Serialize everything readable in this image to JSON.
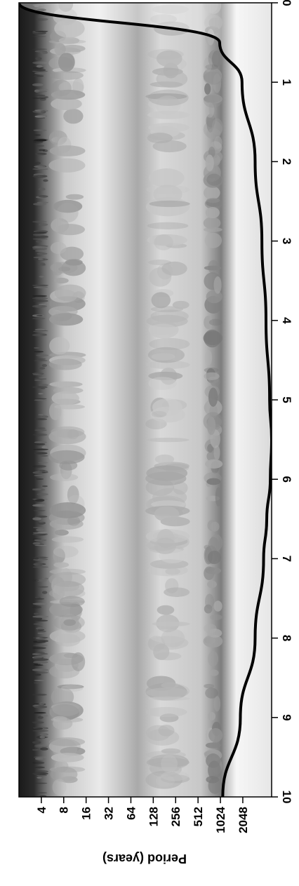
{
  "chart_data": {
    "type": "heatmap",
    "title": "",
    "colormap": "grayscale, dark = high power",
    "time_axis": {
      "label": "",
      "ticks": [
        0,
        1,
        2,
        3,
        4,
        5,
        6,
        7,
        8,
        9,
        10
      ],
      "range": [
        0,
        10
      ]
    },
    "period_axis": {
      "label": "Period (years)",
      "scale": "log2",
      "ticks": [
        4,
        8,
        16,
        32,
        64,
        128,
        256,
        512,
        1024,
        2048
      ],
      "range": [
        2,
        5000
      ]
    },
    "cone_of_influence": {
      "time": [
        0,
        0.5,
        1,
        2,
        3,
        4,
        5,
        5.5,
        6,
        6.5,
        7,
        8,
        9,
        10
      ],
      "period": [
        2,
        1000,
        2000,
        3000,
        3700,
        4200,
        4700,
        5000,
        4800,
        4300,
        3900,
        3000,
        1900,
        1100
      ]
    },
    "power_bands": [
      {
        "period_min": 3,
        "period_max": 5,
        "intensity": 0.9
      },
      {
        "period_min": 5,
        "period_max": 16,
        "intensity": 0.45
      },
      {
        "period_min": 100,
        "period_max": 400,
        "intensity": 0.35
      },
      {
        "period_min": 600,
        "period_max": 1100,
        "intensity": 0.55
      }
    ]
  }
}
